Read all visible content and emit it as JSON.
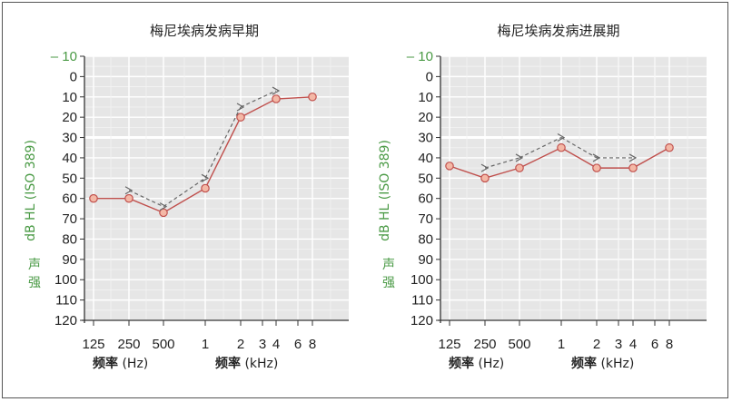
{
  "chart_data": [
    {
      "type": "line",
      "title": "梅尼埃病发病早期",
      "ylabel_main": "dB HL (ISO 389)",
      "ylabel_cn": "声强",
      "xlabel_left_cn": "频率",
      "xlabel_left_unit": " (Hz)",
      "xlabel_right_cn": "频率",
      "xlabel_right_unit": " (kHz)",
      "ylim": [
        -10,
        120
      ],
      "y_reversed": true,
      "y_ticks": [
        "– 10",
        "0",
        "10",
        "20",
        "30",
        "40",
        "50",
        "60",
        "70",
        "80",
        "90",
        "100",
        "110",
        "120"
      ],
      "x_ticks": [
        "125",
        "250",
        "500",
        "1",
        "2",
        "3",
        "4",
        "6",
        "8"
      ],
      "grid": true,
      "series": [
        {
          "style": "solid-circle",
          "color": "#c0504d",
          "marker_color": "#f4b8a6",
          "x": [
            "125",
            "250",
            "500",
            "1",
            "2",
            "4",
            "8"
          ],
          "values": [
            60,
            60,
            67,
            55,
            20,
            11,
            10
          ]
        },
        {
          "style": "dashed-arrow",
          "color": "#666666",
          "x": [
            "250",
            "500",
            "1",
            "2",
            "4"
          ],
          "values": [
            56,
            64,
            50,
            15,
            7
          ]
        }
      ]
    },
    {
      "type": "line",
      "title": "梅尼埃病发病进展期",
      "ylabel_main": "dB HL (ISO 389)",
      "ylabel_cn": "声强",
      "xlabel_left_cn": "频率",
      "xlabel_left_unit": " (Hz)",
      "xlabel_right_cn": "频率",
      "xlabel_right_unit": " (kHz)",
      "ylim": [
        -10,
        120
      ],
      "y_reversed": true,
      "y_ticks": [
        "– 10",
        "0",
        "10",
        "20",
        "30",
        "40",
        "50",
        "60",
        "70",
        "80",
        "90",
        "100",
        "110",
        "120"
      ],
      "x_ticks": [
        "125",
        "250",
        "500",
        "1",
        "2",
        "3",
        "4",
        "6",
        "8"
      ],
      "grid": true,
      "series": [
        {
          "style": "solid-circle",
          "color": "#c0504d",
          "marker_color": "#f4b8a6",
          "x": [
            "125",
            "250",
            "500",
            "1",
            "2",
            "4",
            "8"
          ],
          "values": [
            44,
            50,
            45,
            35,
            45,
            45,
            35
          ]
        },
        {
          "style": "dashed-arrow",
          "color": "#666666",
          "x": [
            "250",
            "500",
            "1",
            "2",
            "4"
          ],
          "values": [
            45,
            40,
            30,
            40,
            40
          ]
        }
      ]
    }
  ]
}
